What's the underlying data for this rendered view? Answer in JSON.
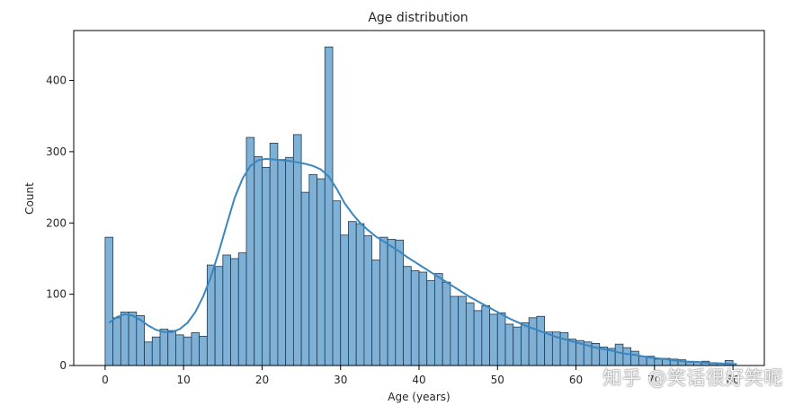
{
  "chart_data": {
    "type": "bar",
    "title": "Age distribution",
    "xlabel": "Age (years)",
    "ylabel": "Count",
    "xlim": [
      -4,
      84
    ],
    "ylim": [
      0,
      470
    ],
    "xticks": [
      0,
      10,
      20,
      30,
      40,
      50,
      60,
      70,
      80
    ],
    "xtick_labels": [
      "0",
      "10",
      "20",
      "30",
      "40",
      "50",
      "60",
      "70",
      "80"
    ],
    "yticks": [
      0,
      100,
      200,
      300,
      400
    ],
    "ytick_labels": [
      "0",
      "100",
      "200",
      "300",
      "400"
    ],
    "grid": false,
    "legend": "none",
    "bin_start": 0,
    "bin_width": 1,
    "bar_fill": "#7fb0d6",
    "bar_stroke": "#1f3a52",
    "kde_color": "#3a86be",
    "counts": [
      180,
      67,
      75,
      75,
      70,
      33,
      40,
      51,
      49,
      43,
      40,
      46,
      41,
      141,
      139,
      155,
      150,
      158,
      320,
      293,
      278,
      312,
      289,
      292,
      324,
      243,
      268,
      262,
      447,
      231,
      183,
      202,
      199,
      182,
      148,
      180,
      177,
      176,
      139,
      133,
      131,
      119,
      129,
      117,
      97,
      97,
      88,
      77,
      84,
      72,
      74,
      58,
      54,
      60,
      67,
      69,
      47,
      47,
      46,
      37,
      35,
      33,
      31,
      26,
      24,
      30,
      25,
      20,
      13,
      13,
      9,
      10,
      9,
      8,
      6,
      5,
      6,
      4,
      3,
      7
    ],
    "kde": {
      "x": [
        0,
        1,
        2,
        3,
        4,
        5,
        6,
        7,
        8,
        9,
        10,
        11,
        12,
        13,
        14,
        15,
        16,
        17,
        18,
        19,
        20,
        21,
        22,
        23,
        24,
        25,
        26,
        27,
        28,
        29,
        30,
        31,
        32,
        33,
        34,
        35,
        36,
        37,
        38,
        39,
        40,
        41,
        42,
        43,
        44,
        45,
        46,
        47,
        48,
        49,
        50,
        51,
        52,
        53,
        54,
        55,
        56,
        57,
        58,
        59,
        60,
        61,
        62,
        63,
        64,
        65,
        66,
        67,
        68,
        69,
        70,
        71,
        72,
        73,
        74,
        75,
        76,
        77,
        78,
        79,
        80
      ],
      "y": [
        60,
        68,
        72,
        70,
        64,
        56,
        50,
        47,
        47,
        51,
        60,
        75,
        97,
        125,
        160,
        198,
        235,
        262,
        280,
        288,
        290,
        289,
        288,
        287,
        285,
        283,
        280,
        275,
        265,
        248,
        228,
        213,
        200,
        190,
        181,
        174,
        167,
        160,
        152,
        145,
        138,
        131,
        124,
        117,
        110,
        103,
        96,
        90,
        84,
        78,
        72,
        66,
        61,
        56,
        52,
        48,
        44,
        40,
        37,
        34,
        31,
        28,
        25,
        23,
        21,
        18,
        16,
        15,
        13,
        11,
        10,
        9,
        7,
        6,
        5,
        5,
        4,
        3,
        3,
        2,
        2
      ]
    }
  },
  "watermark": "知乎 @笑话很好笑呢"
}
